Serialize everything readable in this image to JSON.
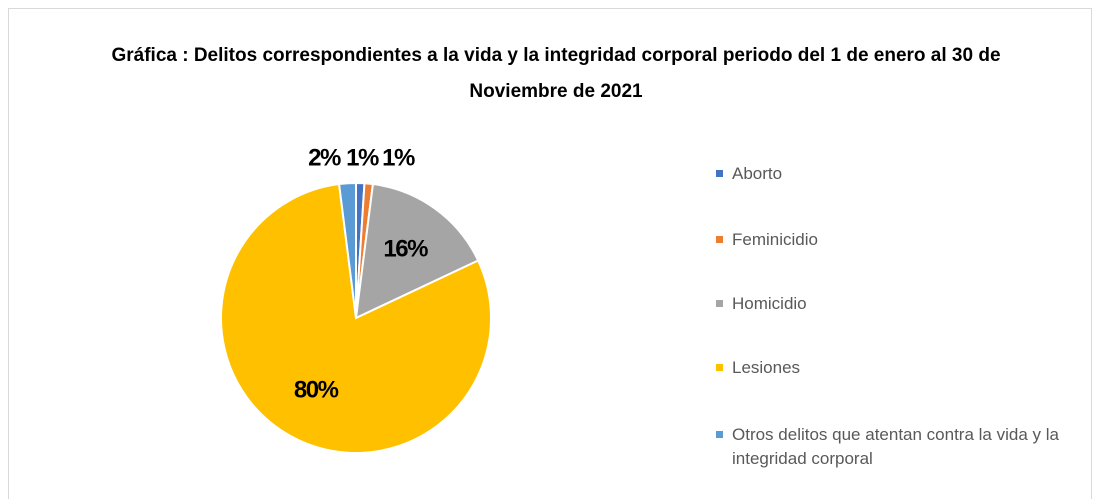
{
  "chart_data": {
    "type": "pie",
    "title": "Gráfica : Delitos correspondientes a la vida y la integridad corporal periodo del 1 de enero al 30 de Noviembre de 2021",
    "categories": [
      "Aborto",
      "Feminicidio",
      "Homicidio",
      "Lesiones",
      "Otros delitos que atentan contra la vida y la integridad corporal"
    ],
    "values": [
      1,
      1,
      16,
      80,
      2
    ],
    "value_labels": [
      "1%",
      "1%",
      "16%",
      "80%",
      "2%"
    ],
    "colors": [
      "#4472c4",
      "#ed7d31",
      "#a5a5a5",
      "#ffc000",
      "#5b9bd5"
    ],
    "legend": "right"
  }
}
